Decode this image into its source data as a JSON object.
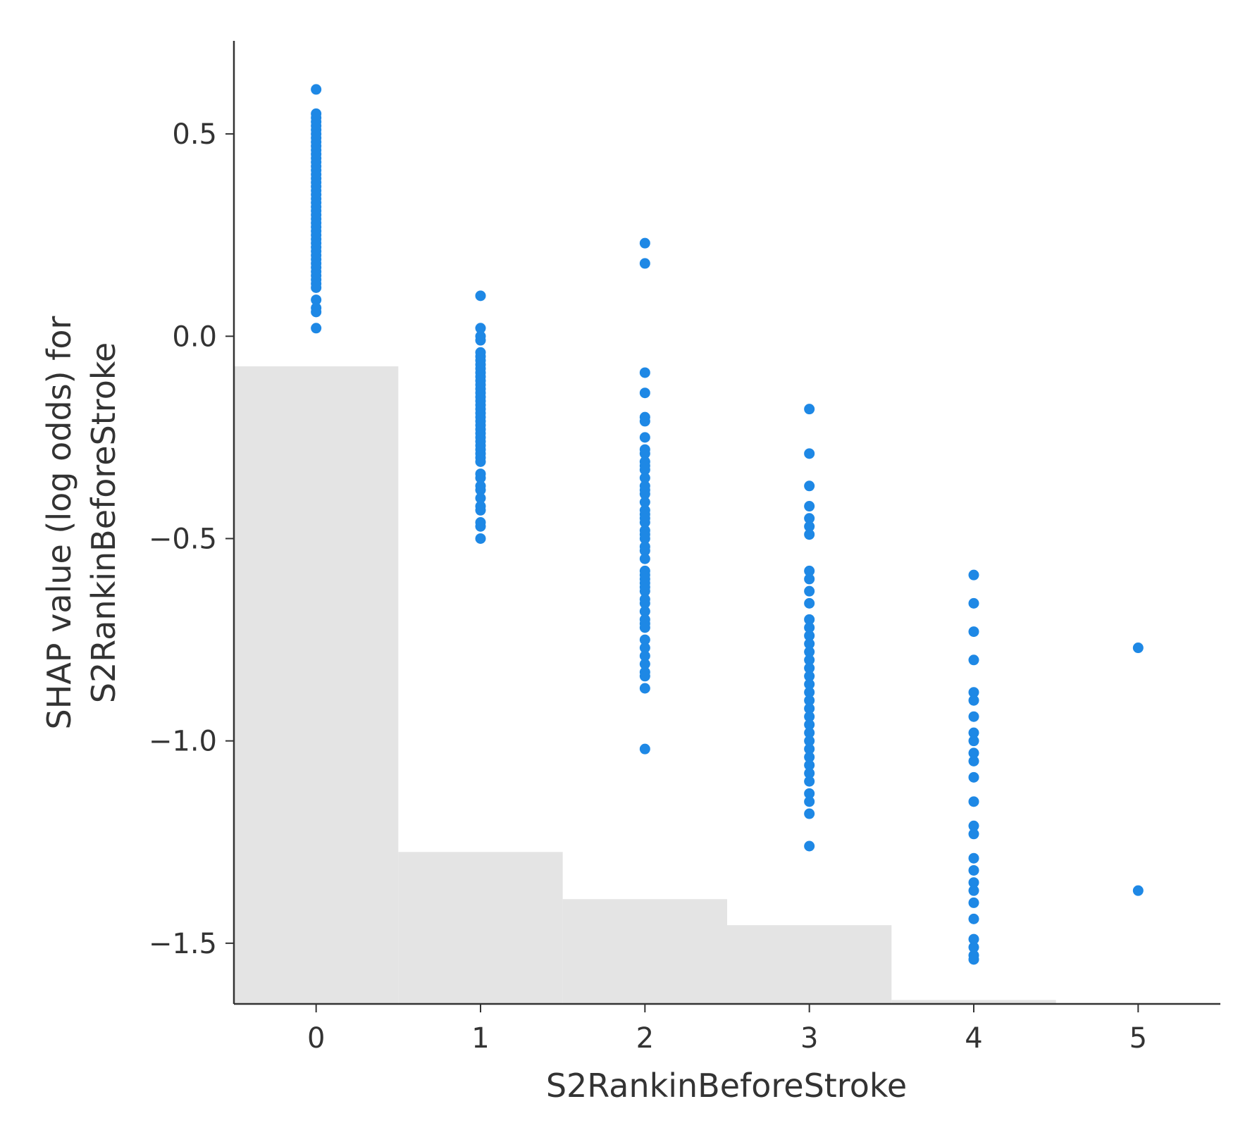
{
  "chart_data": {
    "type": "scatter",
    "xlabel": "S2RankinBeforeStroke",
    "ylabel_lines": [
      "SHAP value (log odds) for",
      "S2RankinBeforeStroke"
    ],
    "xlim": [
      -0.5,
      5.5
    ],
    "ylim": [
      -1.65,
      0.73
    ],
    "x_ticks": [
      0,
      1,
      2,
      3,
      4,
      5
    ],
    "x_tick_labels": [
      "0",
      "1",
      "2",
      "3",
      "4",
      "5"
    ],
    "y_ticks": [
      0.5,
      0.0,
      -0.5,
      -1.0,
      -1.5
    ],
    "y_tick_labels": [
      "0.5",
      "0.0",
      "−0.5",
      "−1.0",
      "−1.5"
    ],
    "point_color": "#1e88e5",
    "histogram_color": "#e4e4e4",
    "histogram": {
      "bin_centers": [
        0,
        1,
        2,
        3,
        4,
        5
      ],
      "relative_heights": [
        1.0,
        0.2383,
        0.1643,
        0.1235,
        0.0061,
        0.0
      ]
    },
    "series": [
      {
        "x": 0,
        "y": [
          0.61,
          0.55,
          0.54,
          0.53,
          0.52,
          0.51,
          0.5,
          0.49,
          0.48,
          0.47,
          0.46,
          0.45,
          0.44,
          0.43,
          0.42,
          0.41,
          0.4,
          0.39,
          0.38,
          0.37,
          0.36,
          0.35,
          0.34,
          0.33,
          0.32,
          0.31,
          0.3,
          0.29,
          0.28,
          0.27,
          0.26,
          0.25,
          0.24,
          0.23,
          0.22,
          0.21,
          0.2,
          0.19,
          0.18,
          0.17,
          0.16,
          0.15,
          0.14,
          0.13,
          0.12,
          0.09,
          0.07,
          0.06,
          0.02
        ]
      },
      {
        "x": 1,
        "y": [
          0.1,
          0.02,
          0.0,
          -0.01,
          -0.04,
          -0.05,
          -0.06,
          -0.07,
          -0.08,
          -0.09,
          -0.1,
          -0.11,
          -0.12,
          -0.13,
          -0.14,
          -0.15,
          -0.16,
          -0.17,
          -0.18,
          -0.19,
          -0.2,
          -0.21,
          -0.22,
          -0.23,
          -0.24,
          -0.25,
          -0.26,
          -0.27,
          -0.28,
          -0.29,
          -0.3,
          -0.31,
          -0.34,
          -0.35,
          -0.37,
          -0.38,
          -0.4,
          -0.42,
          -0.43,
          -0.46,
          -0.47,
          -0.5
        ]
      },
      {
        "x": 2,
        "y": [
          0.23,
          0.18,
          -0.09,
          -0.14,
          -0.2,
          -0.21,
          -0.25,
          -0.28,
          -0.29,
          -0.31,
          -0.32,
          -0.33,
          -0.35,
          -0.37,
          -0.38,
          -0.39,
          -0.41,
          -0.43,
          -0.44,
          -0.45,
          -0.46,
          -0.48,
          -0.49,
          -0.5,
          -0.52,
          -0.53,
          -0.55,
          -0.58,
          -0.59,
          -0.6,
          -0.61,
          -0.62,
          -0.63,
          -0.65,
          -0.66,
          -0.68,
          -0.7,
          -0.71,
          -0.72,
          -0.75,
          -0.77,
          -0.79,
          -0.81,
          -0.83,
          -0.84,
          -0.87,
          -1.02
        ]
      },
      {
        "x": 3,
        "y": [
          -0.18,
          -0.29,
          -0.37,
          -0.42,
          -0.45,
          -0.47,
          -0.49,
          -0.58,
          -0.6,
          -0.63,
          -0.66,
          -0.7,
          -0.72,
          -0.74,
          -0.76,
          -0.78,
          -0.8,
          -0.82,
          -0.84,
          -0.86,
          -0.88,
          -0.9,
          -0.92,
          -0.94,
          -0.96,
          -0.98,
          -1.0,
          -1.02,
          -1.04,
          -1.06,
          -1.08,
          -1.1,
          -1.13,
          -1.15,
          -1.18,
          -1.26
        ]
      },
      {
        "x": 4,
        "y": [
          -0.59,
          -0.66,
          -0.73,
          -0.8,
          -0.88,
          -0.9,
          -0.94,
          -0.98,
          -1.0,
          -1.03,
          -1.05,
          -1.09,
          -1.15,
          -1.21,
          -1.23,
          -1.29,
          -1.32,
          -1.35,
          -1.37,
          -1.4,
          -1.44,
          -1.49,
          -1.51,
          -1.53,
          -1.54
        ]
      },
      {
        "x": 5,
        "y": [
          -0.77,
          -1.37
        ]
      }
    ]
  }
}
